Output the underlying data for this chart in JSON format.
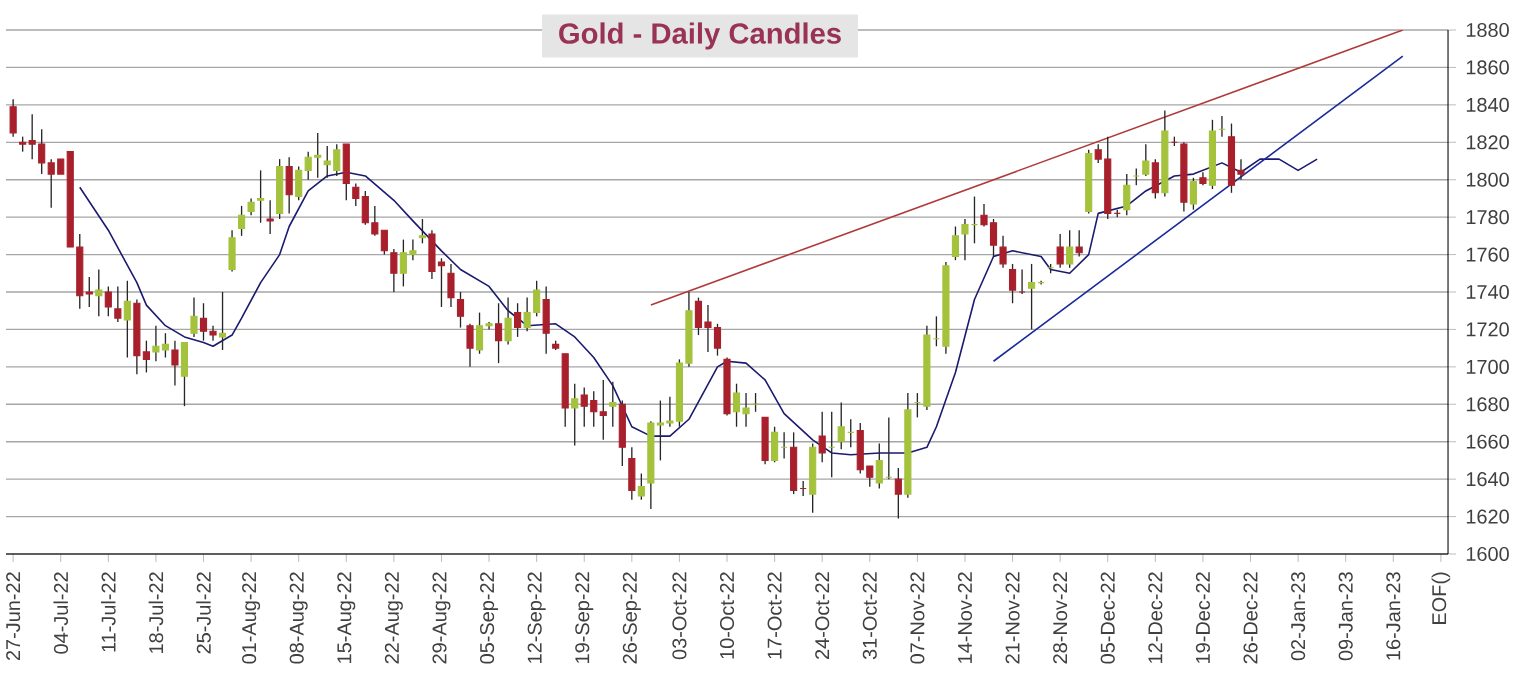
{
  "chart_data": {
    "type": "candlestick",
    "title": "Gold - Daily Candles",
    "categories": [
      "27-Jun-22",
      null,
      null,
      null,
      null,
      "04-Jul-22",
      null,
      null,
      null,
      null,
      "11-Jul-22",
      null,
      null,
      null,
      null,
      "18-Jul-22",
      null,
      null,
      null,
      null,
      "25-Jul-22",
      null,
      null,
      null,
      null,
      "01-Aug-22",
      null,
      null,
      null,
      null,
      "08-Aug-22",
      null,
      null,
      null,
      null,
      "15-Aug-22",
      null,
      null,
      null,
      null,
      "22-Aug-22",
      null,
      null,
      null,
      null,
      "29-Aug-22",
      null,
      null,
      null,
      null,
      "05-Sep-22",
      null,
      null,
      null,
      null,
      "12-Sep-22",
      null,
      null,
      null,
      null,
      "19-Sep-22",
      null,
      null,
      null,
      null,
      "26-Sep-22",
      null,
      null,
      null,
      null,
      "03-Oct-22",
      null,
      null,
      null,
      null,
      "10-Oct-22",
      null,
      null,
      null,
      null,
      "17-Oct-22",
      null,
      null,
      null,
      null,
      "24-Oct-22",
      null,
      null,
      null,
      null,
      "31-Oct-22",
      null,
      null,
      null,
      null,
      "07-Nov-22",
      null,
      null,
      null,
      null,
      "14-Nov-22",
      null,
      null,
      null,
      null,
      "21-Nov-22",
      null,
      null,
      null,
      null,
      "28-Nov-22",
      null,
      null,
      null,
      null,
      "05-Dec-22",
      null,
      null,
      null,
      null,
      "12-Dec-22",
      null,
      null,
      null,
      null,
      "19-Dec-22",
      null,
      null,
      null,
      null,
      "26-Dec-22",
      null,
      null,
      null,
      null,
      "02-Jan-23",
      null,
      null,
      null,
      null,
      "09-Jan-23",
      null,
      null,
      null,
      null,
      "16-Jan-23",
      null,
      null,
      null,
      null,
      "EOF()"
    ],
    "ohlc": [
      [
        1839,
        1843,
        1823,
        1825
      ],
      [
        1820,
        1823,
        1815,
        1819
      ],
      [
        1821,
        1835,
        1811,
        1819
      ],
      [
        1819,
        1827,
        1803,
        1809
      ],
      [
        1809,
        1811,
        1785,
        1803
      ],
      [
        1811,
        1811,
        1803,
        1803
      ],
      [
        1815,
        1815,
        1764,
        1764
      ],
      [
        1764,
        1771,
        1731,
        1738
      ],
      [
        1740,
        1748,
        1732,
        1739
      ],
      [
        1738,
        1752,
        1727,
        1741
      ],
      [
        1740,
        1743,
        1727,
        1732
      ],
      [
        1731,
        1743,
        1724,
        1726
      ],
      [
        1725,
        1746,
        1705,
        1735
      ],
      [
        1734,
        1736,
        1696,
        1706
      ],
      [
        1708,
        1714,
        1697,
        1704
      ],
      [
        1708,
        1722,
        1703,
        1711
      ],
      [
        1709,
        1718,
        1705,
        1712
      ],
      [
        1709,
        1714,
        1690,
        1701
      ],
      [
        1695,
        1713,
        1679,
        1713
      ],
      [
        1718,
        1737,
        1716,
        1727
      ],
      [
        1726,
        1734,
        1714,
        1719
      ],
      [
        1719,
        1722,
        1714,
        1717
      ],
      [
        1716,
        1740,
        1709,
        1718
      ],
      [
        1752,
        1773,
        1751,
        1769
      ],
      [
        1774,
        1786,
        1770,
        1781
      ],
      [
        1783,
        1790,
        1781,
        1788
      ],
      [
        1789,
        1805,
        1777,
        1790
      ],
      [
        1779,
        1789,
        1771,
        1778
      ],
      [
        1782,
        1811,
        1779,
        1807
      ],
      [
        1807,
        1812,
        1782,
        1792
      ],
      [
        1791,
        1807,
        1789,
        1805
      ],
      [
        1805,
        1815,
        1800,
        1812
      ],
      [
        1812,
        1825,
        1801,
        1813
      ],
      [
        1808,
        1818,
        1801,
        1810
      ],
      [
        1805,
        1819,
        1802,
        1816
      ],
      [
        1819,
        1819,
        1789,
        1798
      ],
      [
        1796,
        1798,
        1786,
        1790
      ],
      [
        1791,
        1794,
        1776,
        1777
      ],
      [
        1777,
        1786,
        1770,
        1771
      ],
      [
        1773,
        1773,
        1760,
        1762
      ],
      [
        1761,
        1763,
        1740,
        1750
      ],
      [
        1750,
        1768,
        1743,
        1761
      ],
      [
        1760,
        1768,
        1757,
        1762
      ],
      [
        1769,
        1779,
        1766,
        1770
      ],
      [
        1771,
        1773,
        1747,
        1751
      ],
      [
        1756,
        1758,
        1732,
        1754
      ],
      [
        1750,
        1755,
        1732,
        1737
      ],
      [
        1736,
        1740,
        1721,
        1727
      ],
      [
        1722,
        1723,
        1700,
        1710
      ],
      [
        1709,
        1729,
        1707,
        1722
      ],
      [
        1722,
        1724,
        1720,
        1723
      ],
      [
        1723,
        1734,
        1702,
        1714
      ],
      [
        1714,
        1737,
        1712,
        1726
      ],
      [
        1729,
        1734,
        1716,
        1721
      ],
      [
        1721,
        1737,
        1719,
        1729
      ],
      [
        1729,
        1746,
        1727,
        1741
      ],
      [
        1736,
        1743,
        1707,
        1718
      ],
      [
        1712,
        1714,
        1709,
        1710
      ],
      [
        1707,
        1707,
        1668,
        1678
      ],
      [
        1678,
        1691,
        1658,
        1683
      ],
      [
        1685,
        1689,
        1668,
        1679
      ],
      [
        1682,
        1687,
        1668,
        1676
      ],
      [
        1676,
        1693,
        1661,
        1674
      ],
      [
        1679,
        1692,
        1668,
        1681
      ],
      [
        1680,
        1682,
        1647,
        1657
      ],
      [
        1651,
        1657,
        1629,
        1634
      ],
      [
        1631,
        1643,
        1629,
        1636
      ],
      [
        1638,
        1671,
        1624,
        1670
      ],
      [
        1669,
        1682,
        1650,
        1670
      ],
      [
        1670,
        1684,
        1668,
        1671
      ],
      [
        1671,
        1704,
        1668,
        1702
      ],
      [
        1702,
        1740,
        1700,
        1730
      ],
      [
        1735,
        1737,
        1717,
        1721
      ],
      [
        1724,
        1733,
        1708,
        1721
      ],
      [
        1721,
        1723,
        1706,
        1710
      ],
      [
        1704,
        1705,
        1674,
        1675
      ],
      [
        1676,
        1691,
        1668,
        1686
      ],
      [
        1675,
        1686,
        1668,
        1678
      ],
      [
        1680,
        1686,
        1676,
        1680
      ],
      [
        1673,
        1673,
        1648,
        1650
      ],
      [
        1650,
        1668,
        1649,
        1665
      ],
      [
        1657,
        1665,
        1651,
        1657
      ],
      [
        1657,
        1665,
        1632,
        1634
      ],
      [
        1635,
        1639,
        1631,
        1635
      ],
      [
        1632,
        1659,
        1622,
        1657
      ],
      [
        1663,
        1676,
        1649,
        1654
      ],
      [
        1657,
        1676,
        1641,
        1657
      ],
      [
        1660,
        1681,
        1656,
        1668
      ],
      [
        1665,
        1672,
        1657,
        1665
      ],
      [
        1666,
        1670,
        1643,
        1645
      ],
      [
        1647,
        1647,
        1636,
        1641
      ],
      [
        1638,
        1659,
        1635,
        1650
      ],
      [
        1641,
        1673,
        1640,
        1641
      ],
      [
        1640,
        1646,
        1619,
        1632
      ],
      [
        1632,
        1686,
        1630,
        1677
      ],
      [
        1681,
        1686,
        1673,
        1681
      ],
      [
        1679,
        1722,
        1677,
        1717
      ],
      [
        1715,
        1727,
        1711,
        1715
      ],
      [
        1711,
        1756,
        1707,
        1754
      ],
      [
        1759,
        1775,
        1757,
        1770
      ],
      [
        1771,
        1779,
        1757,
        1776
      ],
      [
        1776,
        1791,
        1766,
        1776
      ],
      [
        1781,
        1787,
        1775,
        1776
      ],
      [
        1777,
        1779,
        1759,
        1765
      ],
      [
        1764,
        1770,
        1753,
        1755
      ],
      [
        1752,
        1755,
        1734,
        1741
      ],
      [
        1740,
        1752,
        1739,
        1740
      ],
      [
        1742,
        1755,
        1720,
        1745
      ],
      [
        1745,
        1746,
        1744,
        1745
      ],
      [
        1753,
        1755,
        1750,
        1753
      ],
      [
        1764,
        1771,
        1753,
        1755
      ],
      [
        1755,
        1773,
        1753,
        1764
      ],
      [
        1764,
        1773,
        1759,
        1761
      ],
      [
        1783,
        1816,
        1782,
        1814
      ],
      [
        1816,
        1819,
        1809,
        1811
      ],
      [
        1811,
        1823,
        1779,
        1782
      ],
      [
        1782,
        1784,
        1780,
        1782
      ],
      [
        1784,
        1803,
        1781,
        1797
      ],
      [
        1802,
        1806,
        1797,
        1802
      ],
      [
        1803,
        1819,
        1802,
        1810
      ],
      [
        1809,
        1811,
        1790,
        1793
      ],
      [
        1793,
        1837,
        1791,
        1826
      ],
      [
        1820,
        1823,
        1818,
        1820
      ],
      [
        1819,
        1820,
        1783,
        1788
      ],
      [
        1787,
        1801,
        1784,
        1799
      ],
      [
        1801,
        1804,
        1797,
        1798
      ],
      [
        1797,
        1832,
        1795,
        1826
      ],
      [
        1827,
        1834,
        1823,
        1827
      ],
      [
        1823,
        1830,
        1793,
        1797
      ],
      [
        1805,
        1811,
        1800,
        1803
      ],
      null,
      null,
      null,
      null,
      null,
      null,
      null,
      null,
      null,
      null,
      null,
      null,
      null,
      null,
      null,
      null,
      null,
      null,
      null,
      null,
      null
    ],
    "colors": [
      "#a8202c",
      "#a8202c",
      "#a8202c",
      "#a8202c",
      "#a8202c",
      "#a8202c",
      "#a8202c",
      "#a8202c",
      "#a8202c",
      "#a4c23c",
      "#a8202c",
      "#a8202c",
      "#a4c23c",
      "#a8202c",
      "#a8202c",
      "#a4c23c",
      "#a4c23c",
      "#a8202c",
      "#a4c23c",
      "#a4c23c",
      "#a8202c",
      "#a8202c",
      "#a4c23c",
      "#a4c23c",
      "#a4c23c",
      "#a4c23c",
      "#a4c23c",
      "#a8202c",
      "#a4c23c",
      "#a8202c",
      "#a4c23c",
      "#a4c23c",
      "#a4c23c",
      "#a4c23c",
      "#a4c23c",
      "#a8202c",
      "#a8202c",
      "#a8202c",
      "#a8202c",
      "#a8202c",
      "#a8202c",
      "#a4c23c",
      "#a4c23c",
      "#a4c23c",
      "#a8202c",
      "#a8202c",
      "#a8202c",
      "#a8202c",
      "#a8202c",
      "#a4c23c",
      "#a4c23c",
      "#a8202c",
      "#a4c23c",
      "#a8202c",
      "#a4c23c",
      "#a4c23c",
      "#a8202c",
      "#a8202c",
      "#a8202c",
      "#a4c23c",
      "#a8202c",
      "#a8202c",
      "#a8202c",
      "#a4c23c",
      "#a8202c",
      "#a8202c",
      "#a4c23c",
      "#a4c23c",
      "#a4c23c",
      "#a4c23c",
      "#a4c23c",
      "#a4c23c",
      "#a8202c",
      "#a8202c",
      "#a8202c",
      "#a8202c",
      "#a4c23c",
      "#a4c23c",
      "#a4c23c",
      "#a8202c",
      "#a4c23c",
      "#a4c23c",
      "#a8202c",
      "#a8202c",
      "#a4c23c",
      "#a8202c",
      "#a4c23c",
      "#a4c23c",
      "#a4c23c",
      "#a8202c",
      "#a8202c",
      "#a4c23c",
      "#a4c23c",
      "#a8202c",
      "#a4c23c",
      "#a4c23c",
      "#a4c23c",
      "#a4c23c",
      "#a4c23c",
      "#a4c23c",
      "#a4c23c",
      "#a4c23c",
      "#a8202c",
      "#a8202c",
      "#a8202c",
      "#a8202c",
      "#a8202c",
      "#a4c23c",
      "#a4c23c",
      "#a4c23c",
      "#a8202c",
      "#a4c23c",
      "#a8202c",
      "#a4c23c",
      "#a8202c",
      "#a8202c",
      "#a8202c",
      "#a4c23c",
      "#a4c23c",
      "#a4c23c",
      "#a8202c",
      "#a4c23c",
      "#a8202c",
      "#a8202c",
      "#a4c23c",
      "#a8202c",
      "#a4c23c",
      "#a4c23c",
      "#a8202c",
      "#a8202c",
      null,
      null,
      null,
      null,
      null,
      null,
      null,
      null,
      null,
      null,
      null,
      null,
      null,
      null,
      null,
      null,
      null,
      null,
      null,
      null,
      null
    ],
    "series": [
      {
        "type": "line",
        "color": "#1a1a70",
        "values": [
          null,
          null,
          null,
          null,
          null,
          null,
          null,
          1796,
          null,
          null,
          1773,
          null,
          null,
          1745,
          1733,
          null,
          1722,
          null,
          1716,
          null,
          1713,
          1711,
          null,
          1717,
          1726,
          null,
          1745,
          null,
          1760,
          1775,
          null,
          1794,
          null,
          1802,
          null,
          1804,
          null,
          1802,
          null,
          null,
          1789,
          null,
          1778,
          null,
          null,
          1762,
          null,
          1752,
          null,
          null,
          1743,
          null,
          1730,
          null,
          1722,
          null,
          null,
          1723,
          null,
          1716,
          null,
          1705,
          null,
          1690,
          null,
          1668,
          null,
          1663,
          null,
          1663,
          null,
          1672,
          null,
          null,
          1700,
          1703,
          null,
          1702,
          null,
          1693,
          null,
          1675,
          null,
          null,
          1661,
          null,
          1654,
          null,
          1653,
          null,
          null,
          1654,
          null,
          null,
          1654,
          null,
          1657,
          1668,
          null,
          1697,
          null,
          1736,
          null,
          1759,
          null,
          1762,
          null,
          null,
          1759,
          1752,
          null,
          1750,
          null,
          1760,
          1782,
          null,
          null,
          1786,
          null,
          1794,
          null,
          null,
          1802,
          null,
          1803,
          null,
          null,
          1809,
          null,
          1804,
          null,
          1811,
          null,
          1811,
          null,
          1805,
          null,
          1811,
          null,
          null,
          null,
          null,
          null,
          null,
          null,
          null,
          null,
          null,
          null,
          null,
          null
        ]
      },
      {
        "type": "line",
        "color": "#b03a3a",
        "values": [
          null,
          null,
          null,
          null,
          null,
          null,
          null,
          null,
          null,
          null,
          null,
          null,
          null,
          null,
          null,
          null,
          null,
          null,
          null,
          null,
          null,
          null,
          null,
          null,
          null,
          null,
          null,
          null,
          null,
          null,
          null,
          null,
          null,
          null,
          null,
          null,
          null,
          null,
          null,
          null,
          null,
          null,
          null,
          null,
          null,
          null,
          null,
          null,
          null,
          null,
          null,
          null,
          null,
          null,
          null,
          null,
          null,
          null,
          null,
          null,
          null,
          null,
          null,
          null,
          null,
          null,
          null,
          1733,
          null,
          null,
          null,
          null,
          null,
          null,
          null,
          null,
          null,
          null,
          null,
          null,
          null,
          null,
          null,
          null,
          null,
          null,
          null,
          null,
          null,
          null,
          null,
          null,
          null,
          null,
          null,
          null,
          null,
          null,
          null,
          null,
          null,
          null,
          null,
          null,
          null,
          null,
          null,
          null,
          null,
          null,
          null,
          null,
          null,
          null,
          null,
          null,
          null,
          null,
          null,
          null,
          null,
          null,
          null,
          null,
          null,
          null,
          null,
          null,
          null,
          null,
          null,
          null,
          null,
          null,
          null,
          null,
          null,
          null,
          null,
          null,
          null,
          null,
          null,
          null,
          null,
          null,
          1880,
          null,
          null,
          null,
          null
        ]
      },
      {
        "type": "line",
        "color": "#1a2a9a",
        "values": [
          null,
          null,
          null,
          null,
          null,
          null,
          null,
          null,
          null,
          null,
          null,
          null,
          null,
          null,
          null,
          null,
          null,
          null,
          null,
          null,
          null,
          null,
          null,
          null,
          null,
          null,
          null,
          null,
          null,
          null,
          null,
          null,
          null,
          null,
          null,
          null,
          null,
          null,
          null,
          null,
          null,
          null,
          null,
          null,
          null,
          null,
          null,
          null,
          null,
          null,
          null,
          null,
          null,
          null,
          null,
          null,
          null,
          null,
          null,
          null,
          null,
          null,
          null,
          null,
          null,
          null,
          null,
          null,
          null,
          null,
          null,
          null,
          null,
          null,
          null,
          null,
          null,
          null,
          null,
          null,
          null,
          null,
          null,
          null,
          null,
          null,
          null,
          null,
          null,
          null,
          null,
          null,
          null,
          null,
          null,
          null,
          null,
          null,
          null,
          null,
          null,
          null,
          null,
          1703,
          null,
          null,
          null,
          null,
          null,
          null,
          null,
          null,
          null,
          null,
          null,
          null,
          null,
          null,
          null,
          null,
          null,
          null,
          null,
          null,
          null,
          null,
          null,
          null,
          null,
          null,
          null,
          null,
          null,
          null,
          null,
          null,
          null,
          null,
          null,
          null,
          null,
          null,
          null,
          null,
          null,
          null,
          1866,
          null,
          null,
          null,
          null
        ]
      }
    ],
    "ylim": [
      1600,
      1880
    ],
    "yticks": [
      1600,
      1620,
      1640,
      1660,
      1680,
      1700,
      1720,
      1740,
      1760,
      1780,
      1800,
      1820,
      1840,
      1860,
      1880
    ],
    "grid": "y"
  }
}
